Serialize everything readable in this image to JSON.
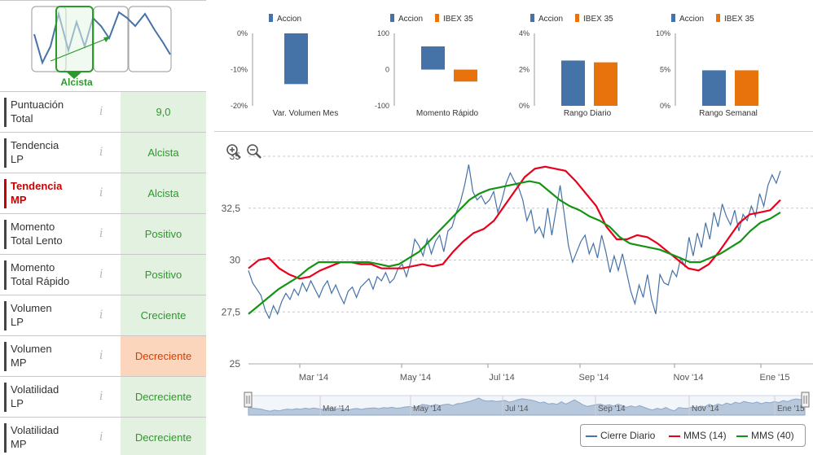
{
  "trend": {
    "label": "Alcista"
  },
  "metrics": [
    {
      "name": "Puntuación Total",
      "line1": "Puntuación",
      "line2": "Total",
      "value": "9,0",
      "status": "good",
      "highlight": false
    },
    {
      "name": "Tendencia LP",
      "line1": "Tendencia",
      "line2": "LP",
      "value": "Alcista",
      "status": "good",
      "highlight": false
    },
    {
      "name": "Tendencia MP",
      "line1": "Tendencia",
      "line2": "MP",
      "value": "Alcista",
      "status": "good",
      "highlight": true
    },
    {
      "name": "Momento Total Lento",
      "line1": "Momento",
      "line2": "Total Lento",
      "value": "Positivo",
      "status": "good",
      "highlight": false
    },
    {
      "name": "Momento Total Rápido",
      "line1": "Momento",
      "line2": "Total Rápido",
      "value": "Positivo",
      "status": "good",
      "highlight": false
    },
    {
      "name": "Volumen LP",
      "line1": "Volumen",
      "line2": "LP",
      "value": "Creciente",
      "status": "good",
      "highlight": false
    },
    {
      "name": "Volumen MP",
      "line1": "Volumen",
      "line2": "MP",
      "value": "Decreciente",
      "status": "bad",
      "highlight": false
    },
    {
      "name": "Volatilidad LP",
      "line1": "Volatilidad",
      "line2": "LP",
      "value": "Decreciente",
      "status": "good",
      "highlight": false
    },
    {
      "name": "Volatilidad MP",
      "line1": "Volatilidad",
      "line2": "MP",
      "value": "Decreciente",
      "status": "good",
      "highlight": false
    }
  ],
  "info_icon_glyph": "i",
  "colors": {
    "accion": "#4572a7",
    "ibex": "#e8720c",
    "good_bg": "#e3f1e1",
    "good_text": "#2a9a2a",
    "bad_bg": "#fbd6bd",
    "bad_text": "#d93a00",
    "price": "#4572a7",
    "mms14": "#e8001c",
    "mms40": "#149414"
  },
  "chart_data": [
    {
      "type": "bar",
      "title": "Var. Volumen Mes",
      "series": [
        {
          "name": "Accion",
          "values": [
            -14
          ]
        }
      ],
      "yticks": [
        "0%",
        "-10%",
        "-20%"
      ],
      "ylim": [
        -20,
        0
      ]
    },
    {
      "type": "bar",
      "title": "Momento Rápido",
      "series": [
        {
          "name": "Accion",
          "values": [
            64
          ]
        },
        {
          "name": "IBEX 35",
          "values": [
            -33
          ]
        }
      ],
      "yticks": [
        "100",
        "0",
        "-100"
      ],
      "ylim": [
        -100,
        100
      ]
    },
    {
      "type": "bar",
      "title": "Rango Diario",
      "series": [
        {
          "name": "Accion",
          "values": [
            2.5
          ]
        },
        {
          "name": "IBEX 35",
          "values": [
            2.4
          ]
        }
      ],
      "yticks": [
        "4%",
        "2%",
        "0%"
      ],
      "ylim": [
        0,
        4
      ]
    },
    {
      "type": "bar",
      "title": "Rango Semanal",
      "series": [
        {
          "name": "Accion",
          "values": [
            4.9
          ]
        },
        {
          "name": "IBEX 35",
          "values": [
            4.9
          ]
        }
      ],
      "yticks": [
        "10%",
        "5%",
        "0%"
      ],
      "ylim": [
        0,
        10
      ]
    },
    {
      "type": "line",
      "ylim": [
        25,
        35
      ],
      "yticks": [
        "35",
        "32,5",
        "30",
        "27,5",
        "25"
      ],
      "xticks": [
        "Mar '14",
        "May '14",
        "Jul '14",
        "Sep '14",
        "Nov '14",
        "Ene '15"
      ],
      "navigator_ticks": [
        "Mar '14",
        "May '14",
        "Jul '14",
        "Sep '14",
        "Nov '14",
        "Ene '15"
      ],
      "series": [
        {
          "name": "Cierre Diario",
          "values": [
            29.5,
            28.9,
            28.6,
            28.3,
            27.6,
            27.2,
            27.8,
            27.4,
            28.0,
            28.4,
            28.1,
            28.6,
            28.3,
            28.9,
            28.5,
            29.0,
            28.6,
            28.2,
            28.7,
            29.0,
            28.4,
            28.8,
            28.3,
            27.9,
            28.5,
            28.7,
            28.2,
            28.7,
            28.9,
            29.1,
            28.6,
            29.2,
            29.0,
            29.4,
            28.9,
            29.1,
            29.6,
            29.8,
            29.2,
            29.9,
            31.0,
            30.7,
            30.2,
            31.0,
            30.3,
            30.9,
            31.2,
            30.4,
            31.4,
            31.6,
            32.3,
            32.8,
            33.6,
            34.6,
            33.3,
            32.9,
            33.1,
            32.7,
            32.9,
            33.3,
            32.3,
            32.9,
            33.7,
            34.2,
            33.8,
            33.5,
            32.9,
            31.9,
            32.4,
            31.3,
            31.6,
            31.1,
            32.5,
            31.2,
            32.4,
            33.6,
            32.2,
            30.7,
            29.9,
            30.4,
            30.9,
            31.2,
            30.3,
            30.8,
            30.1,
            31.2,
            30.4,
            29.4,
            30.2,
            29.5,
            30.3,
            29.4,
            28.5,
            27.9,
            28.8,
            28.2,
            29.3,
            28.1,
            27.4,
            29.3,
            28.9,
            28.8,
            29.5,
            29.2,
            30.1,
            29.7,
            31.1,
            30.2,
            31.3,
            30.6,
            31.8,
            31.0,
            32.3,
            31.6,
            32.7,
            32.1,
            31.7,
            32.4,
            31.4,
            32.2,
            31.9,
            32.6,
            32.1,
            33.2,
            32.6,
            33.6,
            34.1,
            33.7,
            34.3
          ]
        },
        {
          "name": "MMS (14)",
          "values": [
            29.6,
            30.0,
            30.1,
            29.6,
            29.3,
            29.1,
            29.2,
            29.5,
            29.7,
            29.9,
            29.9,
            29.8,
            29.8,
            29.6,
            29.6,
            29.6,
            29.7,
            29.8,
            29.7,
            29.8,
            30.4,
            30.9,
            31.3,
            31.5,
            31.9,
            32.6,
            33.3,
            34.0,
            34.4,
            34.5,
            34.4,
            34.3,
            33.8,
            33.2,
            32.6,
            31.6,
            31.0,
            31.0,
            31.2,
            31.1,
            30.8,
            30.4,
            30.0,
            29.6,
            29.5,
            29.8,
            30.4,
            31.1,
            31.8,
            32.2,
            32.3,
            32.4,
            32.9
          ]
        },
        {
          "name": "MMS (40)",
          "values": [
            27.4,
            27.8,
            28.2,
            28.6,
            28.9,
            29.2,
            29.6,
            29.9,
            29.9,
            29.9,
            29.9,
            29.9,
            29.9,
            29.8,
            29.7,
            29.8,
            30.1,
            30.4,
            30.9,
            31.4,
            31.9,
            32.4,
            32.9,
            33.2,
            33.4,
            33.5,
            33.6,
            33.7,
            33.8,
            33.7,
            33.3,
            32.9,
            32.6,
            32.4,
            32.1,
            31.9,
            31.6,
            31.1,
            30.8,
            30.7,
            30.6,
            30.5,
            30.3,
            30.1,
            29.9,
            29.9,
            30.1,
            30.3,
            30.6,
            30.9,
            31.4,
            31.8,
            32.0,
            32.3
          ]
        }
      ]
    }
  ]
}
